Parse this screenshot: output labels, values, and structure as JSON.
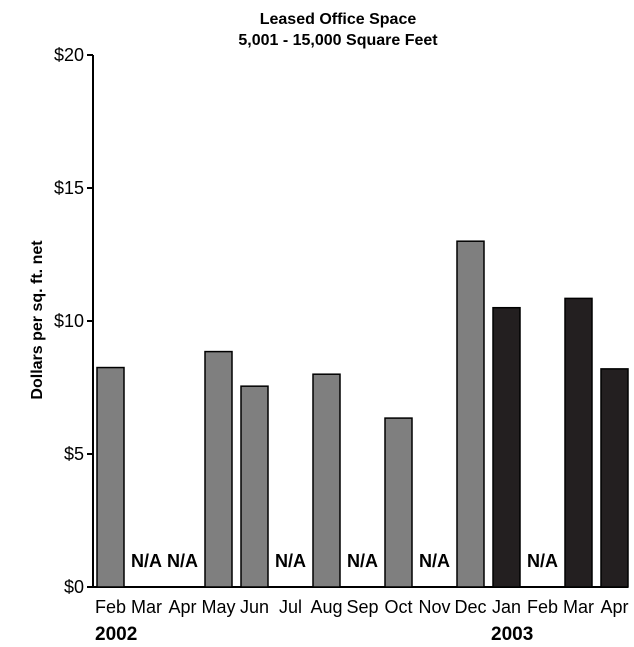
{
  "chart_data": {
    "type": "bar",
    "title": "Leased Office Space",
    "subtitle": "5,001 - 15,000 Square Feet",
    "ylabel": "Dollars per sq. ft. net",
    "ylim": [
      0,
      20
    ],
    "yticks": [
      0,
      5,
      10,
      15,
      20
    ],
    "ytick_labels": [
      "$0",
      "$5",
      "$10",
      "$15",
      "$20"
    ],
    "categories": [
      "Feb",
      "Mar",
      "Apr",
      "May",
      "Jun",
      "Jul",
      "Aug",
      "Sep",
      "Oct",
      "Nov",
      "Dec",
      "Jan",
      "Feb",
      "Mar",
      "Apr"
    ],
    "year_labels": [
      {
        "text": "2002",
        "category_index": 0
      },
      {
        "text": "2003",
        "category_index": 11
      }
    ],
    "values": [
      8.25,
      null,
      null,
      8.85,
      7.55,
      null,
      8.0,
      null,
      6.35,
      null,
      13.0,
      10.5,
      null,
      10.85,
      8.2
    ],
    "missing_label": "N/A",
    "colors": {
      "2002": "#7f7f7f",
      "2003": "#231f20",
      "axis": "#000000"
    },
    "grid": false
  }
}
